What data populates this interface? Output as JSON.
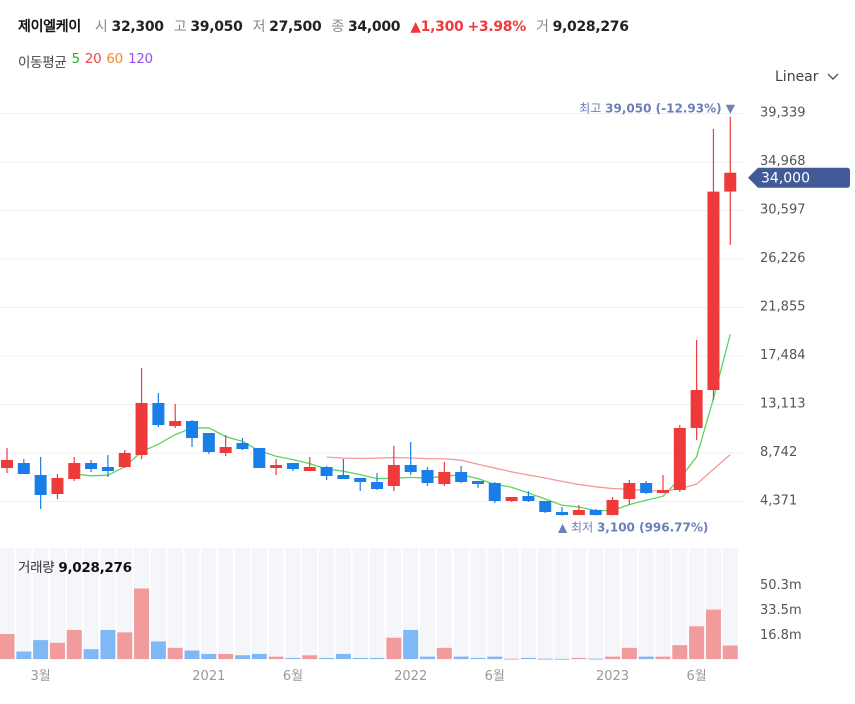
{
  "header": {
    "name": "제이엘케이",
    "open_label": "시",
    "open": "32,300",
    "high_label": "고",
    "high": "39,050",
    "low_label": "저",
    "low": "27,500",
    "close_label": "종",
    "close": "34,000",
    "change": "▲1,300",
    "change_pct": "+3.98%",
    "volume_label": "거",
    "volume": "9,028,276"
  },
  "moving_average": {
    "label": "이동평균",
    "periods": [
      {
        "label": "5",
        "color": "#22b422"
      },
      {
        "label": "20",
        "color": "#f0454a"
      },
      {
        "label": "60",
        "color": "#f08a2a"
      },
      {
        "label": "120",
        "color": "#9a50f0"
      }
    ]
  },
  "scale_selector": {
    "label": "Linear",
    "icon": "chevron-down-icon"
  },
  "price_tag": "34,000",
  "max_marker": {
    "label": "최고",
    "value": "39,050 (-12.93%)",
    "arrow": "▼"
  },
  "min_marker": {
    "label": "최저",
    "value": "3,100 (996.77%)",
    "arrow": "▲"
  },
  "volume_panel": {
    "label": "거래량",
    "value": "9,028,276"
  },
  "colors": {
    "up": "#ef3a3c",
    "down": "#1a7ee8",
    "vol_up": "#f19b9d",
    "vol_down": "#7fb8f5",
    "ma5": "#5fd35f",
    "ma20": "#f59a9a",
    "tag": "#435a98",
    "marker": "#6b7fb8"
  },
  "chart_data": {
    "type": "candlestick",
    "interval": "monthly",
    "start_month": "2020-01",
    "x_tick_labels": [
      {
        "label": "3월",
        "month": "2020-03"
      },
      {
        "label": "2021",
        "month": "2021-01"
      },
      {
        "label": "6월",
        "month": "2021-06"
      },
      {
        "label": "2022",
        "month": "2022-01"
      },
      {
        "label": "6월",
        "month": "2022-06"
      },
      {
        "label": "2023",
        "month": "2023-01"
      },
      {
        "label": "6월",
        "month": "2023-06"
      }
    ],
    "price_axis": {
      "ticks": [
        "4,371",
        "8,742",
        "13,113",
        "17,484",
        "21,855",
        "26,226",
        "30,597",
        "34,968",
        "39,339"
      ],
      "tick_values": [
        4371,
        8742,
        13113,
        17484,
        21855,
        26226,
        30597,
        34968,
        39339
      ],
      "scale": "linear"
    },
    "volume_axis": {
      "ticks": [
        "16.8m",
        "33.5m",
        "50.3m"
      ],
      "tick_values": [
        16.8,
        33.5,
        50.3
      ],
      "unit": "m"
    },
    "ohlc": [
      [
        7390,
        9192,
        6939,
        8111
      ],
      [
        7840,
        8201,
        6849,
        6849
      ],
      [
        6759,
        8381,
        3695,
        4957
      ],
      [
        5047,
        6849,
        4596,
        6489
      ],
      [
        6399,
        8381,
        6218,
        7840
      ],
      [
        7840,
        8111,
        7029,
        7300
      ],
      [
        7480,
        8561,
        6579,
        7119
      ],
      [
        7480,
        9012,
        7390,
        8742
      ],
      [
        8561,
        16402,
        8201,
        13248
      ],
      [
        13248,
        14149,
        11085,
        11265
      ],
      [
        11175,
        13158,
        10995,
        11625
      ],
      [
        11625,
        11716,
        9282,
        10093
      ],
      [
        10544,
        10544,
        8652,
        8832
      ],
      [
        8742,
        10364,
        8471,
        9282
      ],
      [
        9643,
        10093,
        9012,
        9102
      ],
      [
        9192,
        9192,
        7390,
        7390
      ],
      [
        7390,
        8201,
        6759,
        7660
      ],
      [
        7840,
        7840,
        7119,
        7300
      ],
      [
        7119,
        8381,
        7119,
        7480
      ],
      [
        7480,
        7570,
        6308,
        6669
      ],
      [
        6759,
        8201,
        6399,
        6399
      ],
      [
        6489,
        6489,
        5317,
        6128
      ],
      [
        6128,
        6939,
        5407,
        5497
      ],
      [
        5768,
        9372,
        5317,
        7660
      ],
      [
        7660,
        9733,
        6759,
        7029
      ],
      [
        7210,
        7480,
        5768,
        6038
      ],
      [
        5948,
        7930,
        5768,
        7029
      ],
      [
        7029,
        7570,
        6038,
        6128
      ],
      [
        6218,
        6218,
        5587,
        5948
      ],
      [
        6038,
        6128,
        4236,
        4416
      ],
      [
        4416,
        4776,
        4326,
        4776
      ],
      [
        4867,
        5317,
        4326,
        4416
      ],
      [
        4416,
        4416,
        3334,
        3425
      ],
      [
        3425,
        3875,
        3100,
        3150
      ],
      [
        3150,
        4055,
        3150,
        3605
      ],
      [
        3605,
        3700,
        3120,
        3150
      ],
      [
        3150,
        4776,
        3120,
        4506
      ],
      [
        4596,
        6308,
        4055,
        6038
      ],
      [
        6038,
        6218,
        5047,
        5137
      ],
      [
        5137,
        6759,
        5137,
        5407
      ],
      [
        5407,
        11265,
        5227,
        10995
      ],
      [
        10995,
        18925,
        9913,
        14419
      ],
      [
        14419,
        37940,
        13500,
        32300
      ],
      [
        32300,
        39050,
        27500,
        34000
      ]
    ],
    "volume_m": [
      16.8,
      5.0,
      12.7,
      10.9,
      19.5,
      6.6,
      19.5,
      17.9,
      47.4,
      11.8,
      7.5,
      5.7,
      3.4,
      3.4,
      2.5,
      3.4,
      1.6,
      0.7,
      2.5,
      0.7,
      3.4,
      0.7,
      0.7,
      14.3,
      19.5,
      1.6,
      7.5,
      1.6,
      0.7,
      1.6,
      0.2,
      0.7,
      0.2,
      0.1,
      0.7,
      0.2,
      1.6,
      7.5,
      1.6,
      1.6,
      9.3,
      22.0,
      33.2,
      9.03
    ],
    "moving_averages": [
      5,
      20
    ]
  }
}
